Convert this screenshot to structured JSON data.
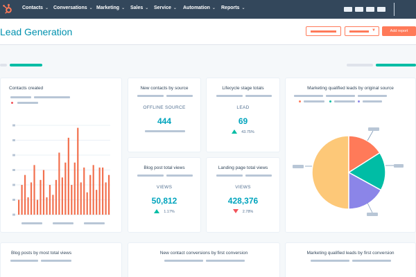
{
  "nav": {
    "items": [
      "Contacts",
      "Conversations",
      "Marketing",
      "Sales",
      "Service",
      "Automation",
      "Reports"
    ]
  },
  "header": {
    "title": "Lead Generation",
    "add_report_label": "Add report"
  },
  "cards": {
    "contacts_created": {
      "title": "Contacts created",
      "chart_data": {
        "type": "bar",
        "values": [
          6,
          12,
          16,
          7,
          13,
          20,
          6,
          14,
          18,
          7,
          12,
          8,
          14,
          25,
          15,
          21,
          31,
          12,
          21,
          35,
          13,
          19,
          9,
          16,
          20,
          10,
          19,
          19,
          13,
          16
        ],
        "color": "#f2704e"
      }
    },
    "new_contacts_by_source": {
      "title": "New contacts by source",
      "label": "OFFLINE SOURCE",
      "value": "444"
    },
    "lifecycle_stage_totals": {
      "title": "Lifecycle stage totals",
      "label": "LEAD",
      "value": "69",
      "change": "43.75%",
      "direction": "up"
    },
    "blog_post_total_views": {
      "title": "Blog post total views",
      "label": "VIEWS",
      "value": "50,812",
      "change": "1.17%",
      "direction": "up"
    },
    "landing_page_total_views": {
      "title": "Landing page total views",
      "label": "VIEWS",
      "value": "428,376",
      "change": "2.78%",
      "direction": "down"
    },
    "mql_by_original_source": {
      "title": "Marketing qualified leads by original source",
      "chart_data": {
        "type": "pie",
        "values": [
          50,
          16,
          17,
          17
        ],
        "colors": [
          "#fdc878",
          "#ff7a59",
          "#00bda5",
          "#8b85e8"
        ]
      }
    },
    "blog_posts_by_views": {
      "title": "Blog posts by most total views"
    },
    "new_contact_conversions": {
      "title": "New contact conversions by first conversion"
    },
    "mql_by_first_conversion": {
      "title": "Marketing qualified leads by first conversion"
    }
  },
  "colors": {
    "nav_bg": "#33475b",
    "accent_teal": "#00a4bd",
    "accent_orange": "#ff7a59",
    "up": "#00bda5",
    "down": "#f2545b"
  }
}
